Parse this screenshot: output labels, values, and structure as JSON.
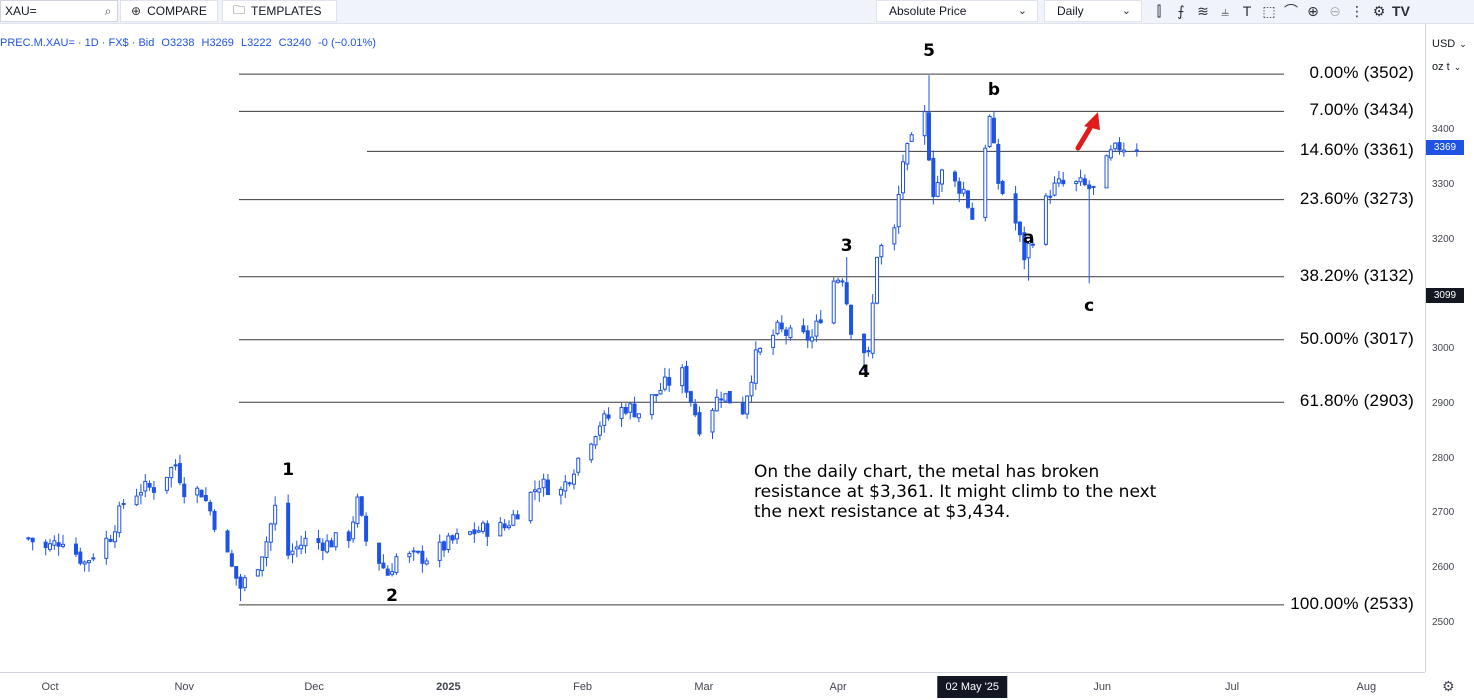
{
  "toolbar": {
    "symbol": "XAU=",
    "compare_label": "COMPARE",
    "templates_label": "TEMPLATES",
    "price_mode": "Absolute Price",
    "interval": "Daily",
    "icons": [
      "candles-icon",
      "indicators-icon",
      "studies-icon",
      "crosshair-icon",
      "text-tool-icon",
      "shapes-icon",
      "pattern-icon",
      "zoom-in-icon",
      "zoom-out-icon",
      "more-icon",
      "settings-icon",
      "tradingview-logo-icon"
    ]
  },
  "legend": {
    "symbol_line": "PREC.M.XAU= · 1D · FX$ · Bid",
    "open": "O3238",
    "high": "H3269",
    "low": "L3222",
    "close": "C3240",
    "change": "-0 (−0.01%)"
  },
  "axis": {
    "currency": "USD",
    "unit": "oz t",
    "last_price": "3369",
    "crosshair_price": "3099",
    "crosshair_date": "02 May '25"
  },
  "note": "On the daily chart, the metal has broken resistance at $3,361. It might climb to the next the next resistance at $3,434.",
  "colors": {
    "up": "#1e53e5",
    "down": "#1e53e5",
    "accent": "#1e53e5",
    "arrow": "#e01b1b"
  },
  "chart_data": {
    "type": "candlestick",
    "title": "",
    "xlabel": "",
    "ylabel": "",
    "ylim": [
      2450,
      3560
    ],
    "grid": false,
    "x_ticks": [
      "Oct",
      "Nov",
      "Dec",
      "2025",
      "Feb",
      "Mar",
      "Apr",
      "Jun",
      "Jul",
      "Aug"
    ],
    "y_ticks": [
      2500,
      2600,
      2700,
      2800,
      2900,
      3000,
      3100,
      3200,
      3300,
      3400
    ],
    "fib_levels": [
      {
        "label": "0.00% (3502)",
        "value": 3502
      },
      {
        "label": "7.00% (3434)",
        "value": 3434
      },
      {
        "label": "14.60% (3361)",
        "value": 3361
      },
      {
        "label": "23.60% (3273)",
        "value": 3273
      },
      {
        "label": "38.20% (3132)",
        "value": 3132
      },
      {
        "label": "50.00% (3017)",
        "value": 3017
      },
      {
        "label": "61.80% (2903)",
        "value": 2903
      },
      {
        "label": "100.00% (2533)",
        "value": 2533
      }
    ],
    "wave_labels": [
      {
        "label": "1",
        "date": "2024-11-25",
        "value": 2775
      },
      {
        "label": "2",
        "date": "2024-12-19",
        "value": 2545
      },
      {
        "label": "3",
        "date": "2025-04-03",
        "value": 3185
      },
      {
        "label": "4",
        "date": "2025-04-07",
        "value": 2955
      },
      {
        "label": "5",
        "date": "2025-04-22",
        "value": 3540
      },
      {
        "label": "a",
        "date": "2025-05-15",
        "value": 3200
      },
      {
        "label": "b",
        "date": "2025-05-07",
        "value": 3470
      },
      {
        "label": "c",
        "date": "2025-05-29",
        "value": 3075
      }
    ],
    "closes": [
      {
        "date": "2024-09-26",
        "value": 2655
      },
      {
        "date": "2024-09-30",
        "value": 2635
      },
      {
        "date": "2024-10-04",
        "value": 2655
      },
      {
        "date": "2024-10-09",
        "value": 2610
      },
      {
        "date": "2024-10-15",
        "value": 2660
      },
      {
        "date": "2024-10-18",
        "value": 2720
      },
      {
        "date": "2024-10-22",
        "value": 2745
      },
      {
        "date": "2024-10-25",
        "value": 2747
      },
      {
        "date": "2024-10-30",
        "value": 2790
      },
      {
        "date": "2024-11-01",
        "value": 2745
      },
      {
        "date": "2024-11-05",
        "value": 2740
      },
      {
        "date": "2024-11-07",
        "value": 2705
      },
      {
        "date": "2024-11-12",
        "value": 2600
      },
      {
        "date": "2024-11-14",
        "value": 2565
      },
      {
        "date": "2024-11-18",
        "value": 2610
      },
      {
        "date": "2024-11-20",
        "value": 2650
      },
      {
        "date": "2024-11-22",
        "value": 2710
      },
      {
        "date": "2024-11-25",
        "value": 2625
      },
      {
        "date": "2024-11-29",
        "value": 2650
      },
      {
        "date": "2024-12-04",
        "value": 2645
      },
      {
        "date": "2024-12-09",
        "value": 2660
      },
      {
        "date": "2024-12-11",
        "value": 2720
      },
      {
        "date": "2024-12-13",
        "value": 2650
      },
      {
        "date": "2024-12-18",
        "value": 2590
      },
      {
        "date": "2024-12-20",
        "value": 2620
      },
      {
        "date": "2024-12-27",
        "value": 2620
      },
      {
        "date": "2025-01-02",
        "value": 2650
      },
      {
        "date": "2025-01-08",
        "value": 2670
      },
      {
        "date": "2025-01-14",
        "value": 2675
      },
      {
        "date": "2025-01-17",
        "value": 2705
      },
      {
        "date": "2025-01-22",
        "value": 2755
      },
      {
        "date": "2025-01-27",
        "value": 2740
      },
      {
        "date": "2025-01-31",
        "value": 2800
      },
      {
        "date": "2025-02-05",
        "value": 2865
      },
      {
        "date": "2025-02-11",
        "value": 2895
      },
      {
        "date": "2025-02-14",
        "value": 2885
      },
      {
        "date": "2025-02-20",
        "value": 2935
      },
      {
        "date": "2025-02-24",
        "value": 2955
      },
      {
        "date": "2025-02-28",
        "value": 2860
      },
      {
        "date": "2025-03-05",
        "value": 2920
      },
      {
        "date": "2025-03-10",
        "value": 2890
      },
      {
        "date": "2025-03-13",
        "value": 2985
      },
      {
        "date": "2025-03-18",
        "value": 3035
      },
      {
        "date": "2025-03-21",
        "value": 3025
      },
      {
        "date": "2025-03-26",
        "value": 3020
      },
      {
        "date": "2025-03-31",
        "value": 3125
      },
      {
        "date": "2025-04-02",
        "value": 3135
      },
      {
        "date": "2025-04-04",
        "value": 3040
      },
      {
        "date": "2025-04-08",
        "value": 2985
      },
      {
        "date": "2025-04-10",
        "value": 3175
      },
      {
        "date": "2025-04-14",
        "value": 3215
      },
      {
        "date": "2025-04-16",
        "value": 3345
      },
      {
        "date": "2025-04-21",
        "value": 3425
      },
      {
        "date": "2025-04-23",
        "value": 3290
      },
      {
        "date": "2025-04-25",
        "value": 3320
      },
      {
        "date": "2025-04-30",
        "value": 3290
      },
      {
        "date": "2025-05-02",
        "value": 3240
      },
      {
        "date": "2025-05-06",
        "value": 3420
      },
      {
        "date": "2025-05-08",
        "value": 3305
      },
      {
        "date": "2025-05-12",
        "value": 3230
      },
      {
        "date": "2025-05-14",
        "value": 3170
      },
      {
        "date": "2025-05-16",
        "value": 3205
      },
      {
        "date": "2025-05-20",
        "value": 3290
      },
      {
        "date": "2025-05-22",
        "value": 3300
      },
      {
        "date": "2025-05-27",
        "value": 3300
      },
      {
        "date": "2025-05-30",
        "value": 3290
      },
      {
        "date": "2025-06-03",
        "value": 3355
      },
      {
        "date": "2025-06-05",
        "value": 3370
      },
      {
        "date": "2025-06-09",
        "value": 3369
      }
    ]
  }
}
